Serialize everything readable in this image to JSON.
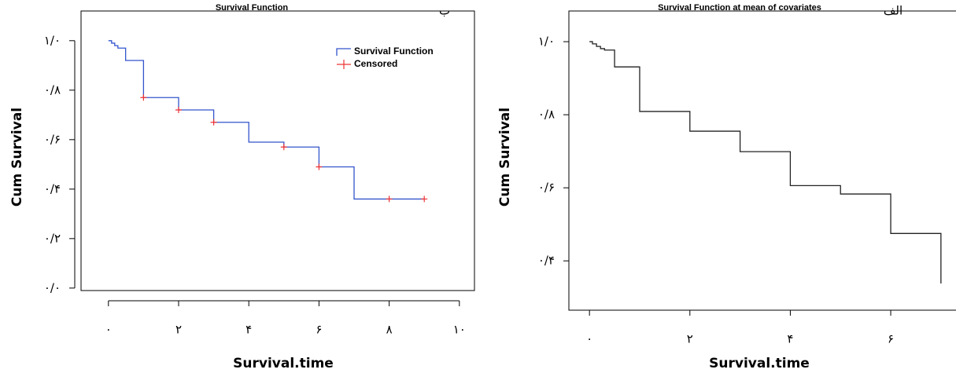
{
  "chart_data": [
    {
      "type": "step",
      "title": "Survival Function",
      "label": "ب",
      "y_label": "Cum Survival",
      "x_label": "Survival.time",
      "xlim": [
        -0.78,
        10.43
      ],
      "ylim": [
        -0.01,
        1.12
      ],
      "xticks": [
        {
          "value": 0,
          "label": "۰"
        },
        {
          "value": 2,
          "label": "۲"
        },
        {
          "value": 4,
          "label": "۴"
        },
        {
          "value": 6,
          "label": "۶"
        },
        {
          "value": 8,
          "label": "۸"
        },
        {
          "value": 10,
          "label": "۱۰"
        }
      ],
      "yticks": [
        {
          "value": 0,
          "label": "۰/۰"
        },
        {
          "value": 0.2,
          "label": "۰/۲"
        },
        {
          "value": 0.4,
          "label": "۰/۴"
        },
        {
          "value": 0.6,
          "label": "۰/۶"
        },
        {
          "value": 0.8,
          "label": "۰/۸"
        },
        {
          "value": 1,
          "label": "۱/۰"
        }
      ],
      "legend": "top-right",
      "series": [
        {
          "name": "Survival Function",
          "color": "#3355cc",
          "draw": "step",
          "x": [
            0,
            0.09,
            0.18,
            0.27,
            0.49,
            1,
            2,
            3,
            4,
            5,
            6,
            7,
            9
          ],
          "values": [
            1,
            0.99,
            0.98,
            0.97,
            0.92,
            0.77,
            0.72,
            0.67,
            0.59,
            0.57,
            0.49,
            0.36,
            0.36
          ]
        },
        {
          "name": "Censored",
          "color": "#ee3333",
          "draw": "plus",
          "x": [
            1,
            2,
            3,
            5,
            6,
            8,
            9
          ],
          "values": [
            0.77,
            0.72,
            0.67,
            0.57,
            0.49,
            0.36,
            0.36
          ]
        }
      ]
    },
    {
      "type": "step",
      "title": "Survival Function at mean of covariates",
      "label": "الف",
      "y_label": "Cum Survival",
      "x_label": "Survival.time",
      "xlim": [
        -0.41,
        7.3
      ],
      "ylim": [
        0.265,
        1.084
      ],
      "xticks": [
        {
          "value": 0,
          "label": "۰"
        },
        {
          "value": 2,
          "label": "۲"
        },
        {
          "value": 4,
          "label": "۴"
        },
        {
          "value": 6,
          "label": "۶"
        }
      ],
      "yticks": [
        {
          "value": 0.4,
          "label": "۰/۴"
        },
        {
          "value": 0.6,
          "label": "۰/۶"
        },
        {
          "value": 0.8,
          "label": "۰/۸"
        },
        {
          "value": 1,
          "label": "۱/۰"
        }
      ],
      "series": [
        {
          "color": "#222222",
          "draw": "step",
          "x": [
            0,
            0.06,
            0.14,
            0.22,
            0.3,
            0.5,
            1,
            2,
            3,
            4,
            5,
            6,
            7
          ],
          "values": [
            1,
            0.994,
            0.987,
            0.981,
            0.977,
            0.931,
            0.809,
            0.755,
            0.699,
            0.606,
            0.583,
            0.475,
            0.338
          ]
        }
      ]
    }
  ]
}
